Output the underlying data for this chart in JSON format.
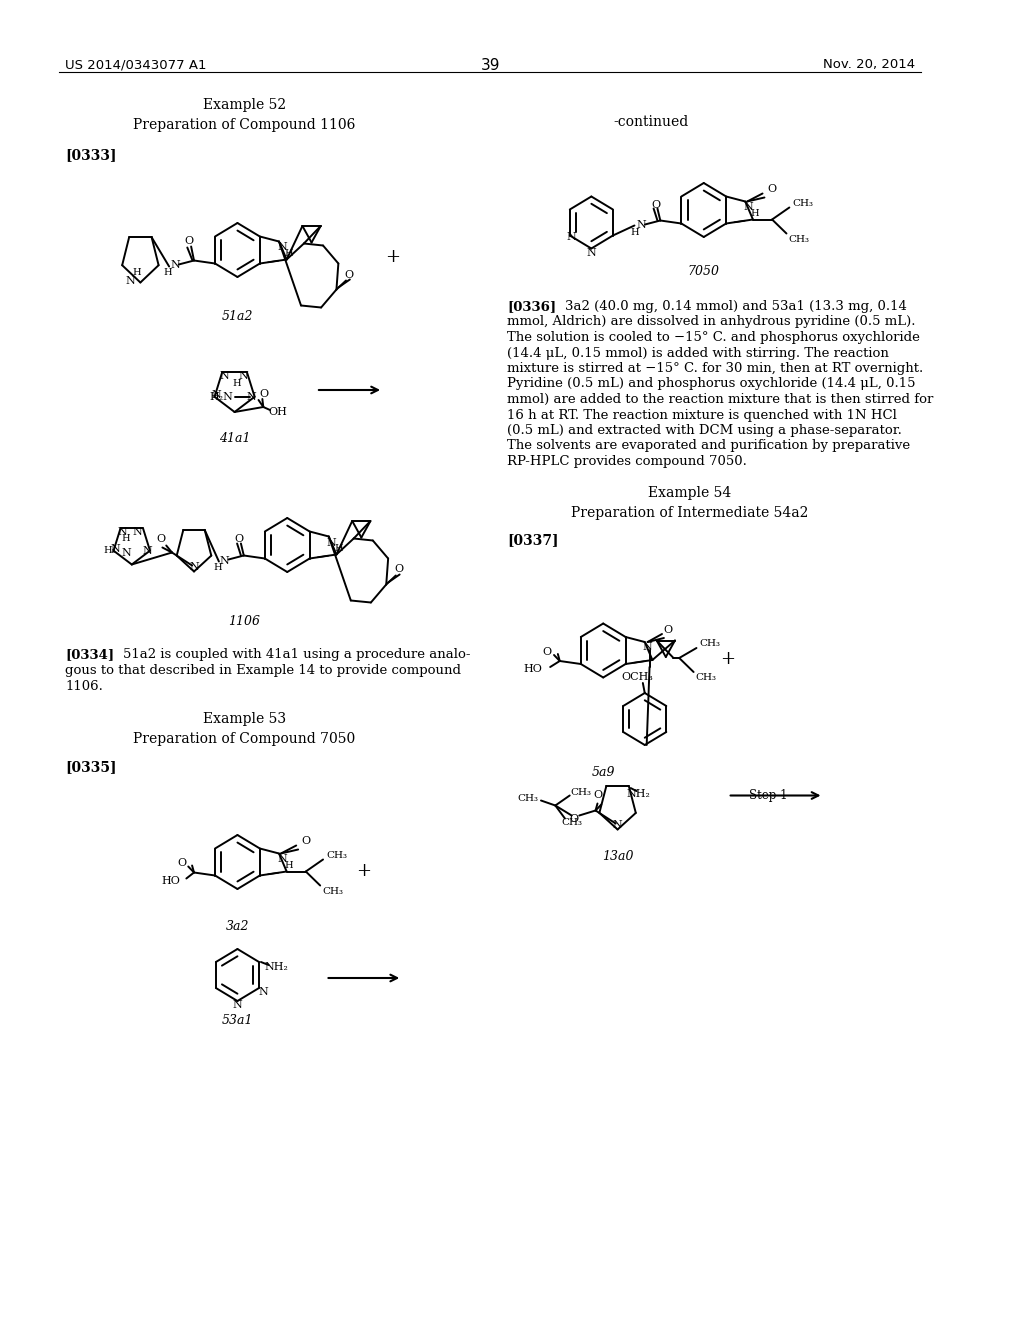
{
  "bg": "#ffffff",
  "header_left": "US 2014/0343077 A1",
  "header_right": "Nov. 20, 2014",
  "page_num": "39",
  "ex52_title": "Example 52",
  "ex52_sub": "Preparation of Compound 1106",
  "par333": "[0333]",
  "label_51a2": "51a2",
  "label_41a1": "41a1",
  "label_1106": "1106",
  "par334_bold": "[0334]",
  "par334_text": "51a2 is coupled with 41a1 using a procedure analo-\ngous to that described in Example 14 to provide compound\n1106.",
  "ex53_title": "Example 53",
  "ex53_sub": "Preparation of Compound 7050",
  "par335": "[0335]",
  "label_3a2": "3a2",
  "label_53a1": "53a1",
  "continued": "-continued",
  "label_7050": "7050",
  "par336_bold": "[0336]",
  "par336_text": "3a2 (40.0 mg, 0.14 mmol) and 53a1 (13.3 mg, 0.14\nmmol, Aldrich) are dissolved in anhydrous pyridine (0.5 mL).\nThe solution is cooled to −15° C. and phosphorus oxychloride\n(14.4 μL, 0.15 mmol) is added with stirring. The reaction\nmixture is stirred at −15° C. for 30 min, then at RT overnight.\nPyridine (0.5 mL) and phosphorus oxychloride (14.4 μL, 0.15\nmmol) are added to the reaction mixture that is then stirred for\n16 h at RT. The reaction mixture is quenched with 1N HCl\n(0.5 mL) and extracted with DCM using a phase-separator.\nThe solvents are evaporated and purification by preparative\nRP-HPLC provides compound 7050.",
  "ex54_title": "Example 54",
  "ex54_sub": "Preparation of Intermediate 54a2",
  "par337": "[0337]",
  "label_5a9": "5a9",
  "label_13a0": "13a0"
}
